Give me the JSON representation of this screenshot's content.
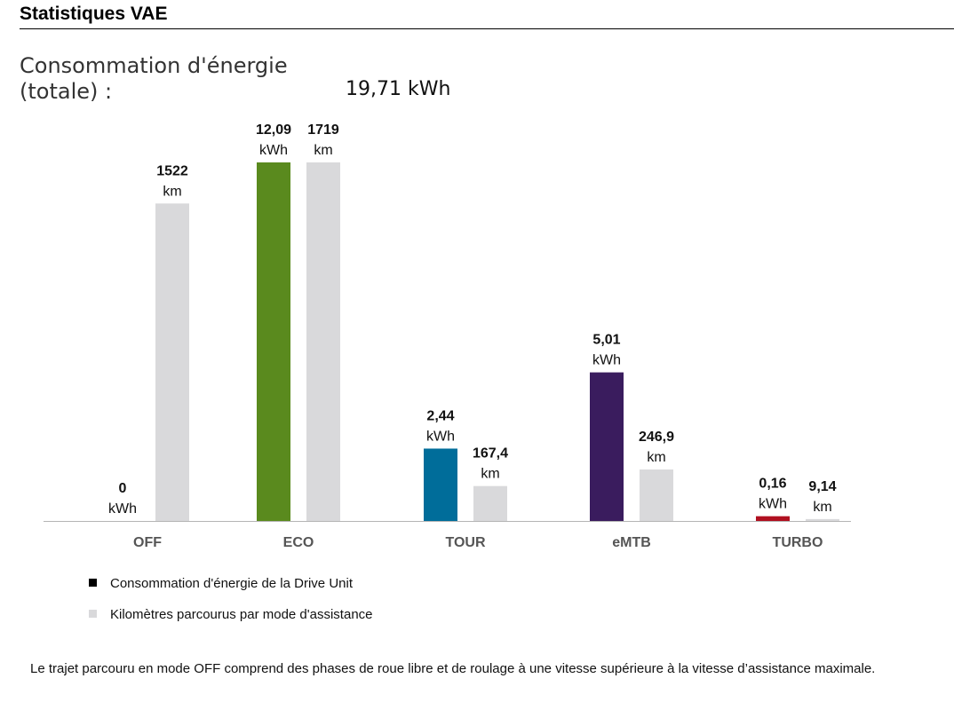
{
  "header": {
    "title": "Statistiques VAE"
  },
  "summary": {
    "label_line1": "Consommation d'énergie",
    "label_line2": "(totale) :",
    "total_value": "19,71 kWh"
  },
  "chart_data": {
    "type": "bar",
    "categories": [
      "OFF",
      "ECO",
      "TOUR",
      "eMTB",
      "TURBO"
    ],
    "series": [
      {
        "name": "Consommation d'énergie de la Drive Unit",
        "unit": "kWh",
        "values": [
          0,
          12.09,
          2.44,
          5.01,
          0.16
        ],
        "labels": [
          "0",
          "12,09",
          "2,44",
          "5,01",
          "0,16"
        ],
        "colors": [
          "#5a8a1e",
          "#5a8a1e",
          "#006d9a",
          "#3a1c5e",
          "#b01020"
        ]
      },
      {
        "name": "Kilomètres parcourus par mode d'assistance",
        "unit": "km",
        "values": [
          1522,
          1719,
          167.4,
          246.9,
          9.14
        ],
        "labels": [
          "1522",
          "1719",
          "167,4",
          "246,9",
          "9,14"
        ],
        "color": "#d9d9db"
      }
    ]
  },
  "legend": {
    "items": [
      {
        "label": "Consommation d'énergie de la Drive Unit",
        "color": "#000000"
      },
      {
        "label": "Kilomètres parcourus par mode d'assistance",
        "color": "#d9d9db"
      }
    ]
  },
  "footnote": "Le trajet parcouru en mode OFF comprend des phases de roue libre et de roulage à une vitesse supérieure à la vitesse d’assistance maximale."
}
